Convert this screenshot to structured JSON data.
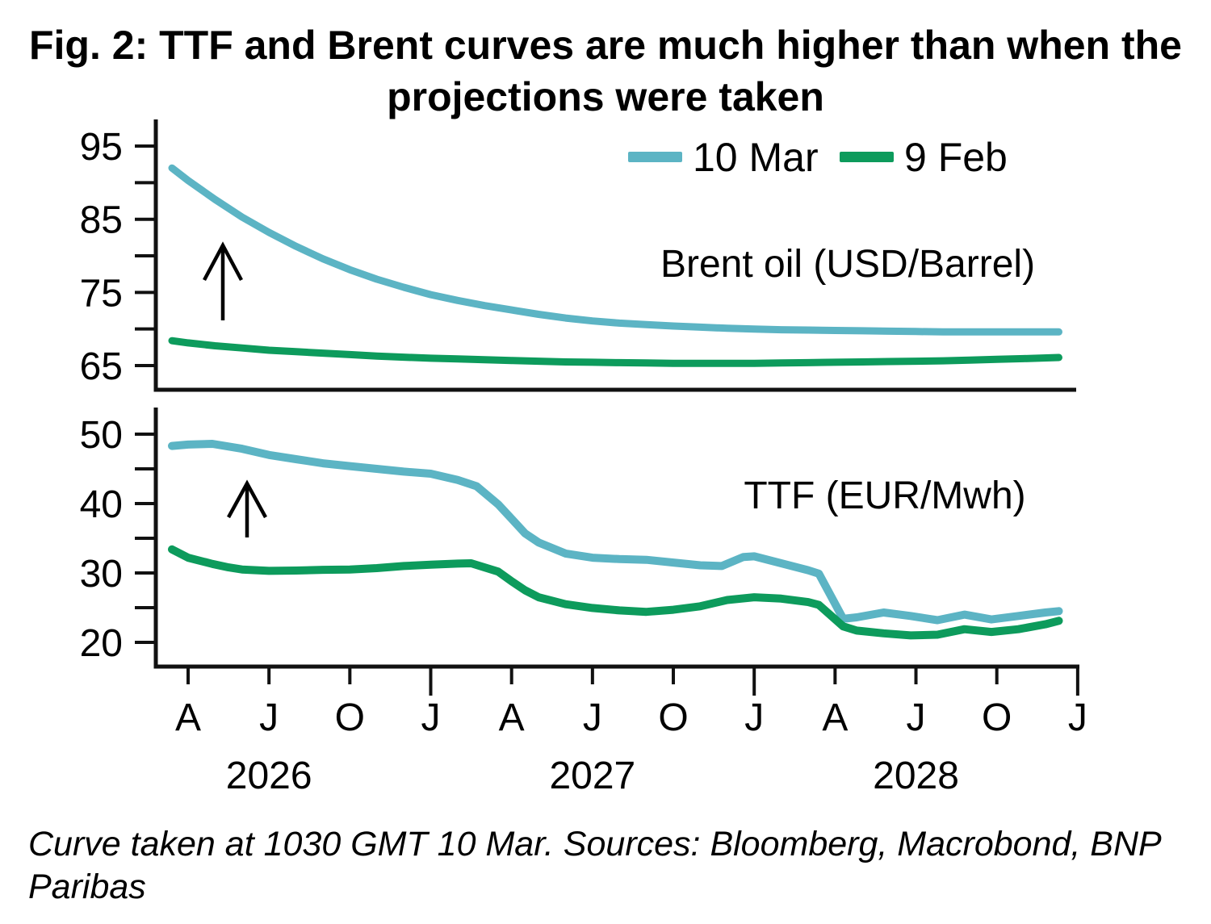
{
  "figure": {
    "title": "Fig. 2: TTF and Brent curves are much higher than when the projections were taken",
    "title_line1": "Fig. 2: TTF and Brent curves are much higher than when the",
    "title_line2": "projections were taken",
    "footnote_line1": "Curve taken at 1030 GMT 10 Mar. Sources: Bloomberg, Macrobond, BNP",
    "footnote_line2": "Paribas"
  },
  "legend": {
    "position": "top-right-of-first-panel",
    "items": [
      {
        "label": "10 Mar",
        "color": "#5cb4c4"
      },
      {
        "label": "9 Feb",
        "color": "#0d9b5c"
      }
    ]
  },
  "chart_data": {
    "type": "line",
    "layout": "two stacked panels with shared quarterly x axis",
    "x_axis": {
      "unit": "month offset, 0 = Apr 2026",
      "range_months": [
        -0.6,
        33
      ],
      "ticks": [
        {
          "m": 0,
          "label": "A"
        },
        {
          "m": 3,
          "label": "J"
        },
        {
          "m": 6,
          "label": "O"
        },
        {
          "m": 9,
          "label": "J",
          "year_start": true
        },
        {
          "m": 12,
          "label": "A"
        },
        {
          "m": 15,
          "label": "J"
        },
        {
          "m": 18,
          "label": "O"
        },
        {
          "m": 21,
          "label": "J",
          "year_start": true
        },
        {
          "m": 24,
          "label": "A"
        },
        {
          "m": 27,
          "label": "J"
        },
        {
          "m": 30,
          "label": "O"
        },
        {
          "m": 33,
          "label": "J",
          "year_start": true
        }
      ],
      "years": [
        {
          "m": 3,
          "label": "2026"
        },
        {
          "m": 15,
          "label": "2027"
        },
        {
          "m": 27,
          "label": "2028"
        }
      ]
    },
    "panels": [
      {
        "id": "brent",
        "title": "Brent oil (USD/Barrel)",
        "ylim": [
          61.5,
          98.5
        ],
        "yticks": [
          65,
          70,
          75,
          80,
          85,
          90,
          95
        ],
        "ytick_labels": [
          65,
          75,
          85,
          95
        ],
        "annotation": "up-arrow",
        "series": [
          {
            "name": "10 Mar",
            "color": "#5cb4c4",
            "points": [
              [
                -0.6,
                92.0
              ],
              [
                0,
                90.3
              ],
              [
                1,
                87.7
              ],
              [
                2,
                85.3
              ],
              [
                3,
                83.2
              ],
              [
                4,
                81.3
              ],
              [
                5,
                79.6
              ],
              [
                6,
                78.1
              ],
              [
                7,
                76.8
              ],
              [
                8,
                75.7
              ],
              [
                9,
                74.7
              ],
              [
                10,
                73.9
              ],
              [
                11,
                73.2
              ],
              [
                12,
                72.6
              ],
              [
                13,
                72.0
              ],
              [
                14,
                71.5
              ],
              [
                15,
                71.1
              ],
              [
                16,
                70.8
              ],
              [
                17,
                70.6
              ],
              [
                18,
                70.4
              ],
              [
                19,
                70.25
              ],
              [
                20,
                70.1
              ],
              [
                21,
                70.0
              ],
              [
                22,
                69.9
              ],
              [
                23,
                69.85
              ],
              [
                24,
                69.8
              ],
              [
                25,
                69.75
              ],
              [
                26,
                69.7
              ],
              [
                27,
                69.65
              ],
              [
                28,
                69.6
              ],
              [
                29,
                69.6
              ],
              [
                30,
                69.6
              ],
              [
                31,
                69.6
              ],
              [
                32.3,
                69.6
              ]
            ]
          },
          {
            "name": "9 Feb",
            "color": "#0d9b5c",
            "points": [
              [
                -0.6,
                68.4
              ],
              [
                0,
                68.1
              ],
              [
                1,
                67.7
              ],
              [
                2,
                67.4
              ],
              [
                3,
                67.1
              ],
              [
                4,
                66.9
              ],
              [
                5,
                66.7
              ],
              [
                6,
                66.5
              ],
              [
                7,
                66.3
              ],
              [
                8,
                66.15
              ],
              [
                9,
                66.0
              ],
              [
                10,
                65.9
              ],
              [
                11,
                65.8
              ],
              [
                12,
                65.7
              ],
              [
                13,
                65.6
              ],
              [
                14,
                65.5
              ],
              [
                15,
                65.45
              ],
              [
                16,
                65.4
              ],
              [
                17,
                65.35
              ],
              [
                18,
                65.3
              ],
              [
                19,
                65.3
              ],
              [
                20,
                65.3
              ],
              [
                21,
                65.3
              ],
              [
                22,
                65.35
              ],
              [
                23,
                65.4
              ],
              [
                24,
                65.45
              ],
              [
                25,
                65.5
              ],
              [
                26,
                65.55
              ],
              [
                27,
                65.6
              ],
              [
                28,
                65.65
              ],
              [
                29,
                65.75
              ],
              [
                30,
                65.85
              ],
              [
                31,
                65.95
              ],
              [
                32.3,
                66.1
              ]
            ]
          }
        ]
      },
      {
        "id": "ttf",
        "title": "TTF (EUR/Mwh)",
        "ylim": [
          16.5,
          54
        ],
        "yticks": [
          20,
          25,
          30,
          35,
          40,
          45,
          50
        ],
        "ytick_labels": [
          20,
          30,
          40,
          50
        ],
        "annotation": "up-arrow",
        "series": [
          {
            "name": "10 Mar",
            "color": "#5cb4c4",
            "points": [
              [
                -0.6,
                48.3
              ],
              [
                0,
                48.5
              ],
              [
                0.9,
                48.6
              ],
              [
                2,
                47.9
              ],
              [
                3,
                47.0
              ],
              [
                4,
                46.4
              ],
              [
                5,
                45.8
              ],
              [
                6,
                45.4
              ],
              [
                7,
                45.0
              ],
              [
                8,
                44.6
              ],
              [
                9,
                44.3
              ],
              [
                10,
                43.4
              ],
              [
                10.7,
                42.5
              ],
              [
                11.5,
                39.9
              ],
              [
                12,
                37.8
              ],
              [
                12.5,
                35.7
              ],
              [
                13,
                34.4
              ],
              [
                14,
                32.8
              ],
              [
                15,
                32.2
              ],
              [
                16,
                32.0
              ],
              [
                17,
                31.9
              ],
              [
                18,
                31.5
              ],
              [
                19,
                31.1
              ],
              [
                19.8,
                31.0
              ],
              [
                20.6,
                32.3
              ],
              [
                21,
                32.4
              ],
              [
                22,
                31.4
              ],
              [
                23,
                30.4
              ],
              [
                23.4,
                29.9
              ],
              [
                24.3,
                23.4
              ],
              [
                24.8,
                23.6
              ],
              [
                25.8,
                24.3
              ],
              [
                26.8,
                23.8
              ],
              [
                27.8,
                23.2
              ],
              [
                28.8,
                24.0
              ],
              [
                29.8,
                23.3
              ],
              [
                30.8,
                23.8
              ],
              [
                31.8,
                24.3
              ],
              [
                32.3,
                24.5
              ]
            ]
          },
          {
            "name": "9 Feb",
            "color": "#0d9b5c",
            "points": [
              [
                -0.6,
                33.4
              ],
              [
                0,
                32.2
              ],
              [
                0.9,
                31.3
              ],
              [
                1.5,
                30.8
              ],
              [
                2,
                30.5
              ],
              [
                3,
                30.3
              ],
              [
                4,
                30.35
              ],
              [
                5,
                30.45
              ],
              [
                6,
                30.5
              ],
              [
                7,
                30.7
              ],
              [
                8,
                31.0
              ],
              [
                9,
                31.2
              ],
              [
                10,
                31.35
              ],
              [
                10.5,
                31.4
              ],
              [
                11.5,
                30.2
              ],
              [
                12,
                28.8
              ],
              [
                12.5,
                27.5
              ],
              [
                13,
                26.5
              ],
              [
                14,
                25.5
              ],
              [
                15,
                24.95
              ],
              [
                16,
                24.6
              ],
              [
                17,
                24.4
              ],
              [
                18,
                24.7
              ],
              [
                19,
                25.2
              ],
              [
                20,
                26.1
              ],
              [
                21,
                26.5
              ],
              [
                22,
                26.3
              ],
              [
                23,
                25.8
              ],
              [
                23.4,
                25.4
              ],
              [
                24.3,
                22.3
              ],
              [
                24.8,
                21.7
              ],
              [
                25.8,
                21.3
              ],
              [
                26.8,
                21.0
              ],
              [
                27.8,
                21.1
              ],
              [
                28.8,
                21.9
              ],
              [
                29.8,
                21.5
              ],
              [
                30.8,
                21.9
              ],
              [
                31.8,
                22.6
              ],
              [
                32.3,
                23.1
              ]
            ]
          }
        ]
      }
    ]
  }
}
